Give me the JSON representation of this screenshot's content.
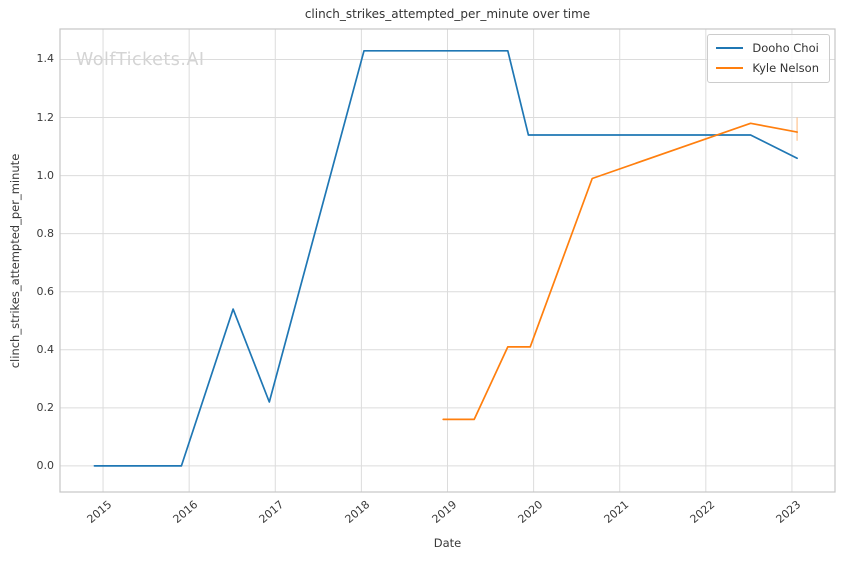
{
  "watermark": "WolfTickets.AI",
  "colors": {
    "series_blue": "#1f77b4",
    "series_orange": "#ff7f0e",
    "grid": "#dcdcdc",
    "spine": "#c6c6c6",
    "text": "#3a3a3a",
    "watermark": "#d4d4d4"
  },
  "chart_data": {
    "type": "line",
    "title": "clinch_strikes_attempted_per_minute over time",
    "xlabel": "Date",
    "ylabel": "clinch_strikes_attempted_per_minute",
    "grid": true,
    "legend_position": "upper right",
    "xlim": [
      2014.5,
      2023.5
    ],
    "ylim": [
      -0.09,
      1.505
    ],
    "x_tick_values": [
      2015,
      2016,
      2017,
      2018,
      2019,
      2020,
      2021,
      2022,
      2023
    ],
    "x_tick_labels": [
      "2015",
      "2016",
      "2017",
      "2018",
      "2019",
      "2020",
      "2021",
      "2022",
      "2023"
    ],
    "y_tick_values": [
      0.0,
      0.2,
      0.4,
      0.6,
      0.8,
      1.0,
      1.2,
      1.4
    ],
    "y_tick_labels": [
      "0.0",
      "0.2",
      "0.4",
      "0.6",
      "0.8",
      "1.0",
      "1.2",
      "1.4"
    ],
    "series": [
      {
        "name": "Dooho Choi",
        "color": "#1f77b4",
        "points": [
          [
            2014.9,
            0.0
          ],
          [
            2015.91,
            0.0
          ],
          [
            2016.51,
            0.54
          ],
          [
            2016.93,
            0.22
          ],
          [
            2018.03,
            1.43
          ],
          [
            2019.7,
            1.43
          ],
          [
            2019.94,
            1.14
          ],
          [
            2022.52,
            1.14
          ],
          [
            2023.06,
            1.06
          ]
        ]
      },
      {
        "name": "Kyle Nelson",
        "color": "#ff7f0e",
        "points": [
          [
            2018.95,
            0.16
          ],
          [
            2019.31,
            0.16
          ],
          [
            2019.7,
            0.41
          ],
          [
            2019.96,
            0.41
          ],
          [
            2020.68,
            0.99
          ],
          [
            2022.52,
            1.18
          ],
          [
            2023.06,
            1.15
          ]
        ],
        "error_bar_last": {
          "x": 2023.06,
          "y_low": 1.12,
          "y_high": 1.2
        }
      }
    ]
  }
}
